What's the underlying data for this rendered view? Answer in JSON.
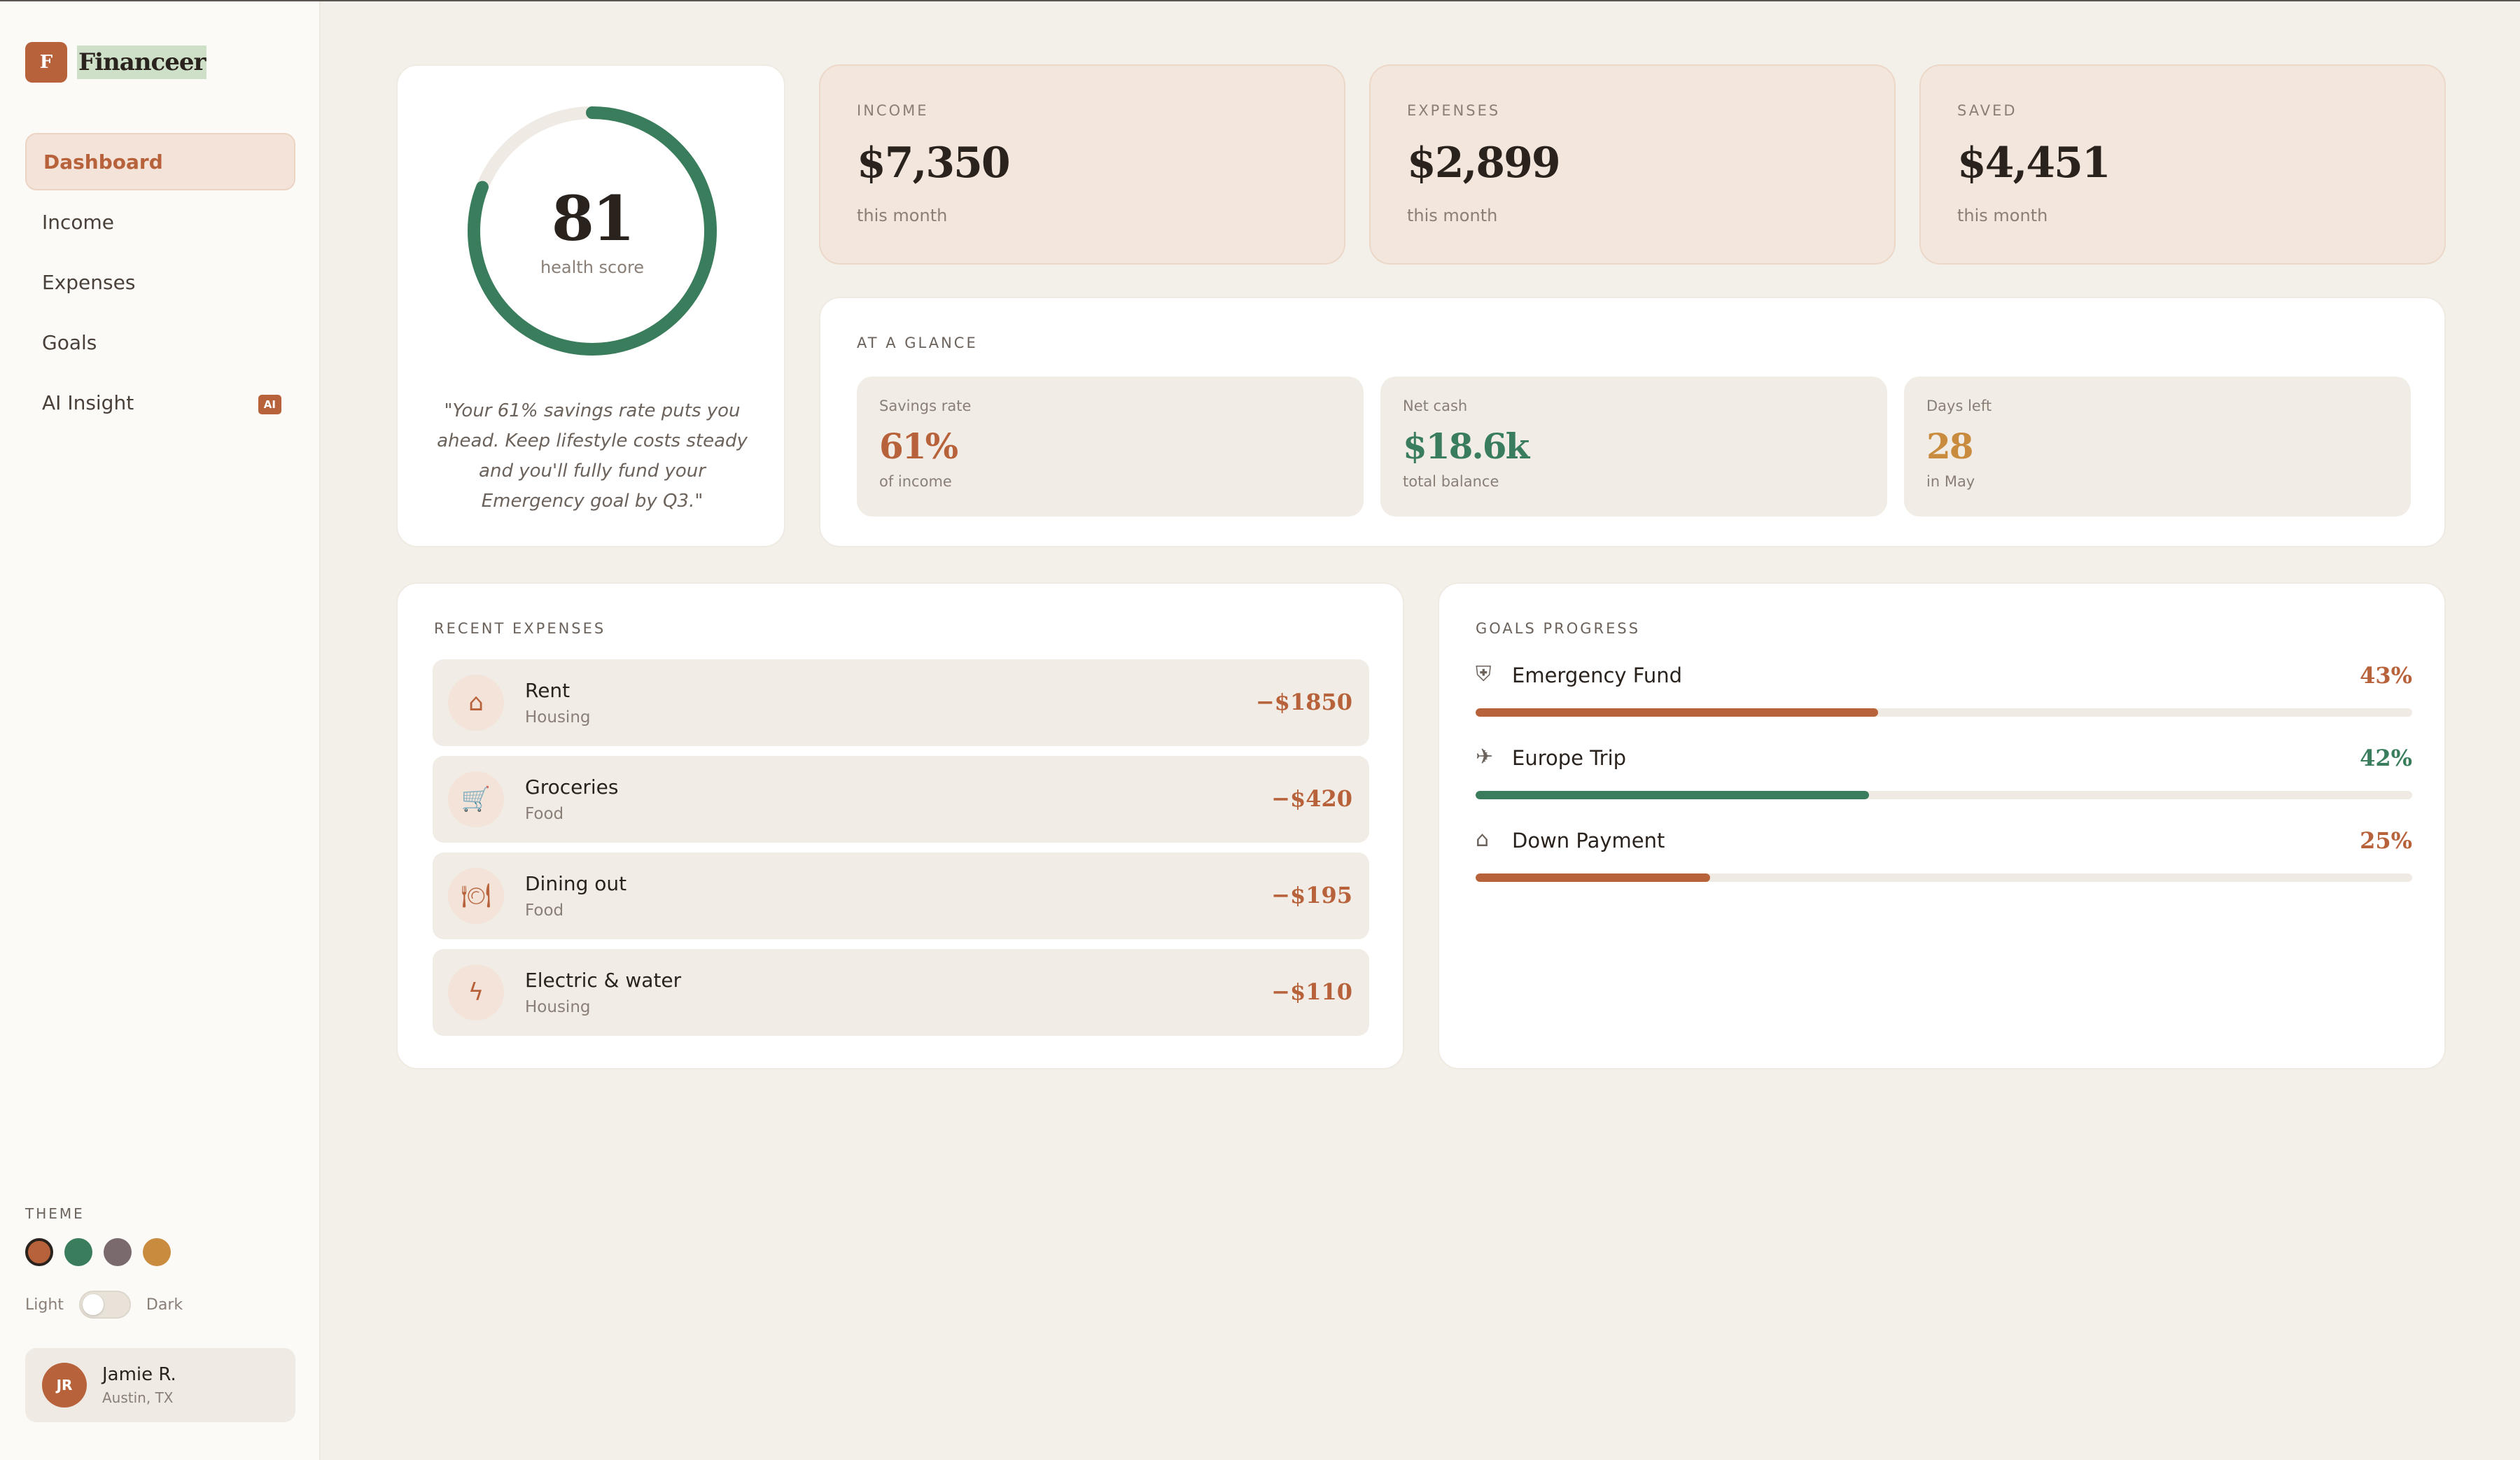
{
  "app": {
    "logo_letter": "F",
    "name": "Financeer"
  },
  "colors": {
    "accent": "#b7623a",
    "green": "#3a7d5c",
    "amber": "#c98c3e",
    "mauve": "#7a6a6e"
  },
  "sidebar": {
    "items": [
      {
        "label": "Dashboard",
        "active": true
      },
      {
        "label": "Income"
      },
      {
        "label": "Expenses"
      },
      {
        "label": "Goals"
      },
      {
        "label": "AI Insight",
        "badge": "AI"
      }
    ],
    "theme_label": "THEME",
    "swatches": [
      "#b7623a",
      "#3a7d5c",
      "#7a6a6e",
      "#c98c3e"
    ],
    "mode_light": "Light",
    "mode_dark": "Dark",
    "user": {
      "initials": "JR",
      "name": "Jamie R.",
      "location": "Austin, TX"
    }
  },
  "health": {
    "score": "81",
    "score_value": 81,
    "label": "health score",
    "quote": "\"Your 61% savings rate puts you ahead. Keep lifestyle costs steady and you'll fully fund your Emergency goal by Q3.\""
  },
  "stats": [
    {
      "label": "INCOME",
      "value": "$7,350",
      "sub": "this month"
    },
    {
      "label": "EXPENSES",
      "value": "$2,899",
      "sub": "this month"
    },
    {
      "label": "SAVED",
      "value": "$4,451",
      "sub": "this month"
    }
  ],
  "glance": {
    "title": "AT A GLANCE",
    "tiles": [
      {
        "label": "Savings rate",
        "value": "61%",
        "sub": "of income",
        "color": "#b7623a"
      },
      {
        "label": "Net cash",
        "value": "$18.6k",
        "sub": "total balance",
        "color": "#3a7d5c"
      },
      {
        "label": "Days left",
        "value": "28",
        "sub": "in May",
        "color": "#c98c3e"
      }
    ]
  },
  "expenses": {
    "title": "RECENT EXPENSES",
    "items": [
      {
        "icon": "house-icon",
        "glyph": "⌂",
        "name": "Rent",
        "category": "Housing",
        "amount": "−$1850"
      },
      {
        "icon": "cart-icon",
        "glyph": "🛒",
        "name": "Groceries",
        "category": "Food",
        "amount": "−$420"
      },
      {
        "icon": "plate-icon",
        "glyph": "🍽",
        "name": "Dining out",
        "category": "Food",
        "amount": "−$195"
      },
      {
        "icon": "bolt-icon",
        "glyph": "ϟ",
        "name": "Electric & water",
        "category": "Housing",
        "amount": "−$110"
      }
    ]
  },
  "goals": {
    "title": "GOALS PROGRESS",
    "items": [
      {
        "icon": "shield-icon",
        "glyph": "⛨",
        "name": "Emergency Fund",
        "pct": "43%",
        "progress": 0.43,
        "color": "#b7623a"
      },
      {
        "icon": "plane-icon",
        "glyph": "✈",
        "name": "Europe Trip",
        "pct": "42%",
        "progress": 0.42,
        "color": "#3a7d5c"
      },
      {
        "icon": "house-icon",
        "glyph": "⌂",
        "name": "Down Payment",
        "pct": "25%",
        "progress": 0.25,
        "color": "#b7623a"
      }
    ]
  }
}
